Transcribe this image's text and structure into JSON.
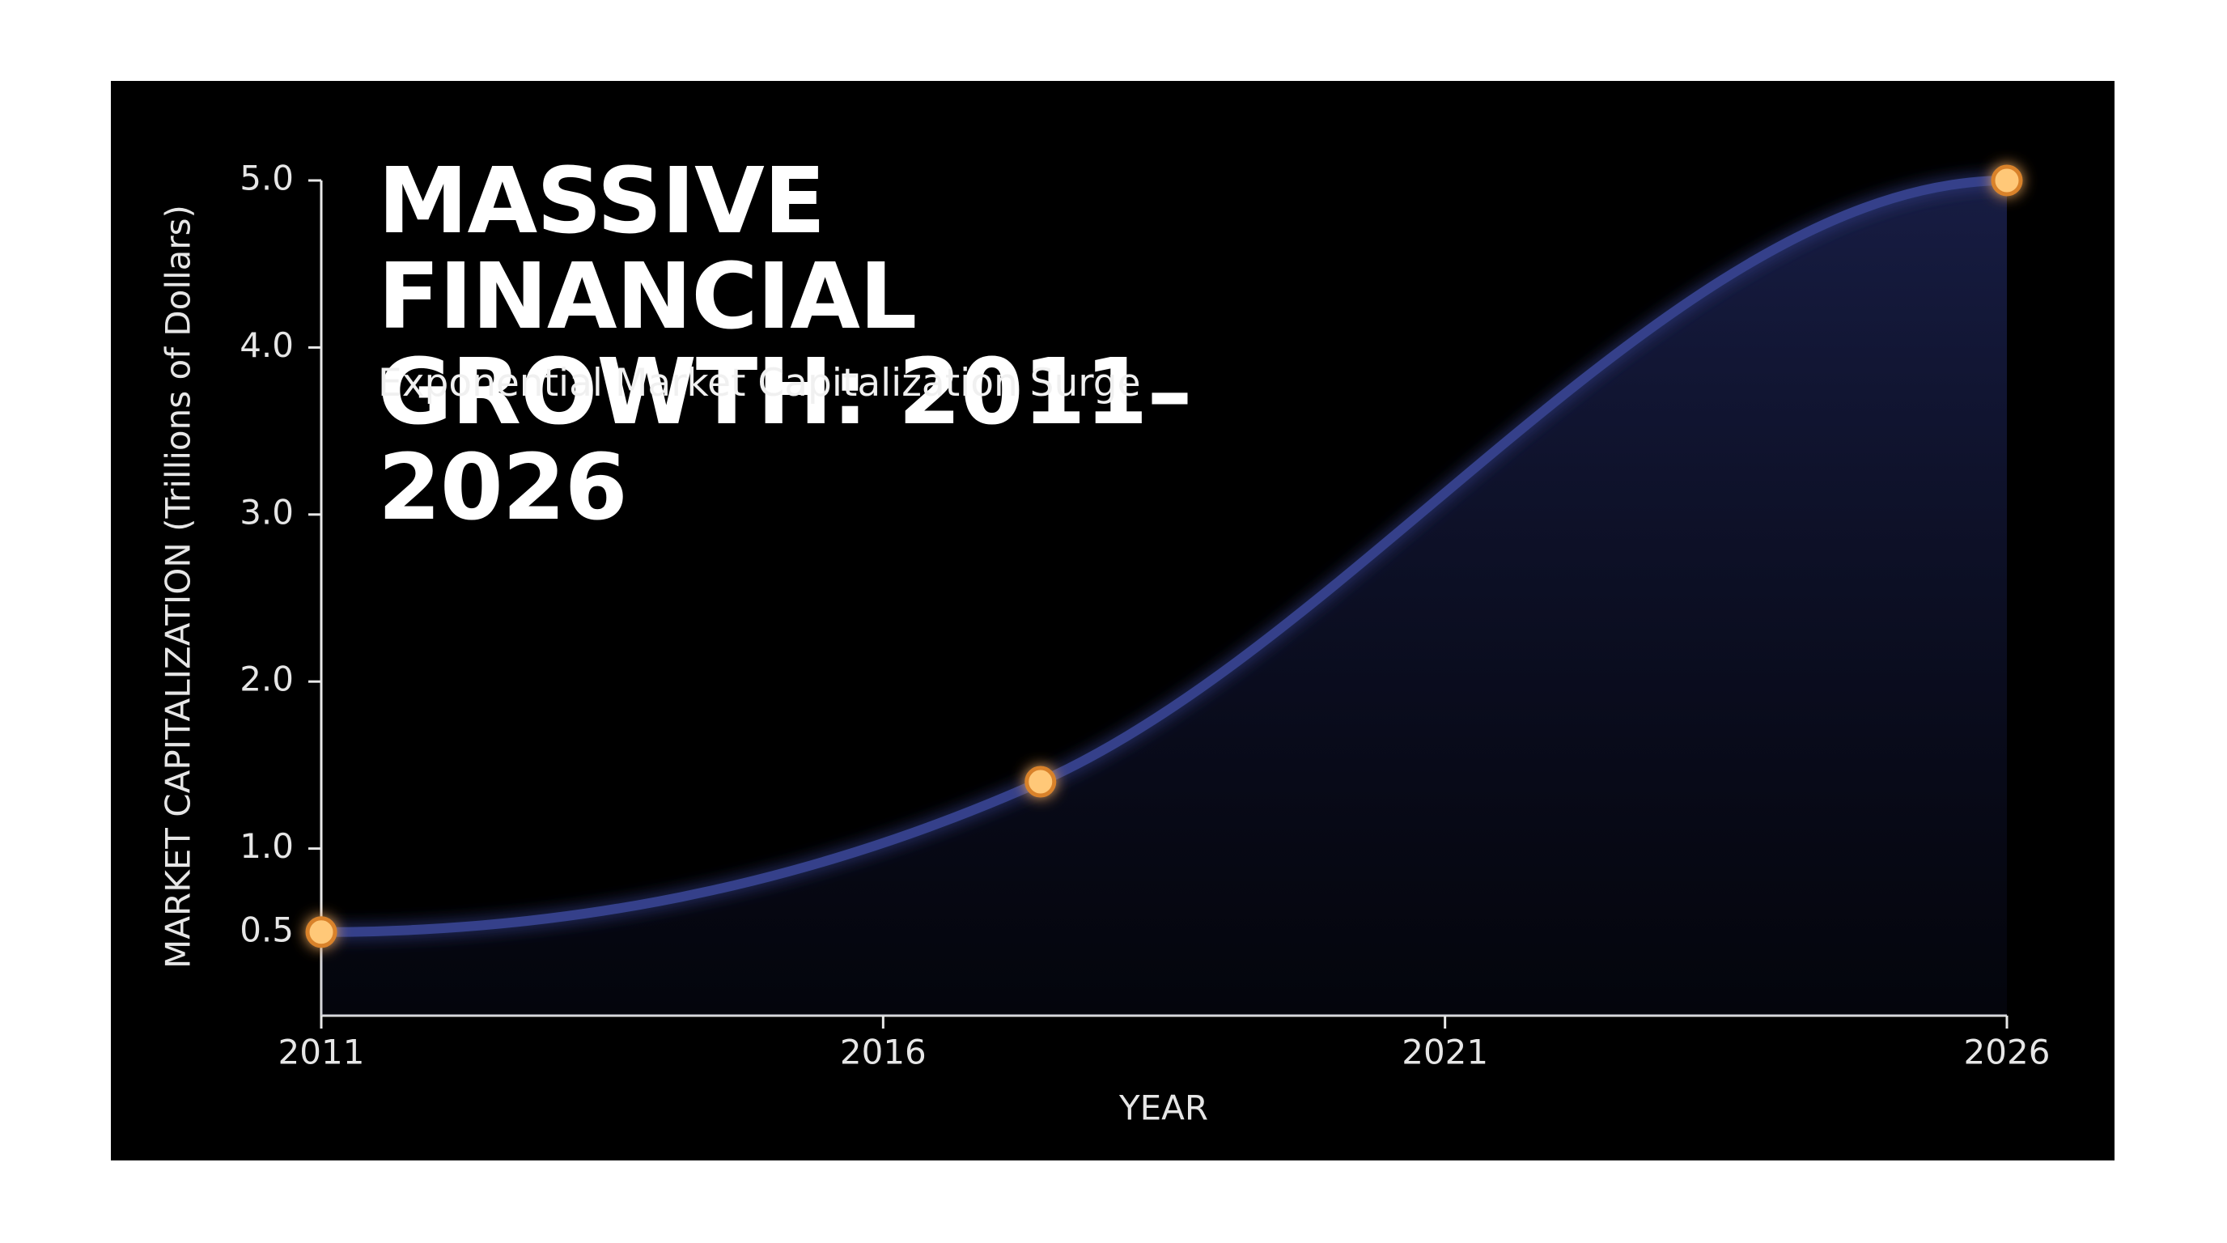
{
  "chart_data": {
    "type": "line",
    "title": "MASSIVE FINANCIAL GROWTH: 2011–2026",
    "subtitle": "Exponential Market Capitalization Surge",
    "x_label": "YEAR",
    "y_label": "MARKET CAPITALIZATION (Trillions of Dollars)",
    "x": [
      2011,
      2017.4,
      2026
    ],
    "series": [
      {
        "color": "#34418a",
        "marker_color": "#ffc878",
        "values": [
          0.5,
          1.4,
          5.0
        ]
      }
    ],
    "xlim": [
      2011,
      2026
    ],
    "xticks": [
      2011,
      2016,
      2021,
      2026
    ],
    "ylim": [
      0,
      5
    ],
    "yticks": [
      0.5,
      {
        "value": 1,
        "label": "1.0"
      },
      {
        "value": 2,
        "label": "2.0"
      },
      {
        "value": 3,
        "label": "3.0"
      },
      {
        "value": 4,
        "label": "4.0"
      },
      {
        "value": 5,
        "label": "5.0"
      }
    ],
    "area": true
  }
}
